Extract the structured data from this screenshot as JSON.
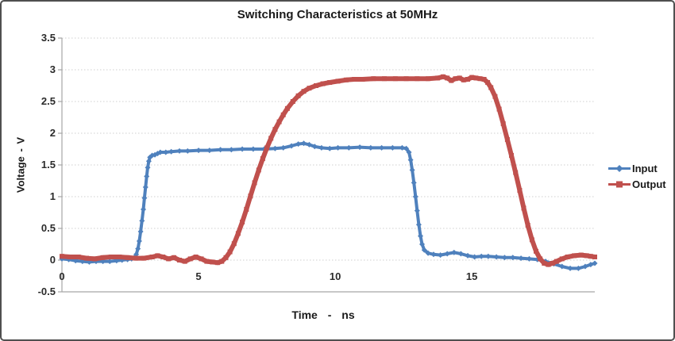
{
  "chart_data": {
    "type": "line",
    "title": "Switching Characteristics at 50MHz",
    "xlabel": "Time - ns",
    "ylabel": "Voltage - V",
    "xlim": [
      0,
      19.5
    ],
    "ylim": [
      -0.5,
      3.5
    ],
    "x_ticks": [
      0,
      5,
      10,
      15
    ],
    "y_ticks": [
      3.5,
      3,
      2.5,
      2,
      1.5,
      1,
      0.5,
      0,
      -0.5
    ],
    "grid": true,
    "grid_color": "#cfcfcf",
    "axis_color": "#a6a6a6",
    "legend_position": "right-outside",
    "series": [
      {
        "name": "Input",
        "color": "#4f81bd",
        "marker": "diamond",
        "line_width": 4,
        "points": [
          [
            0,
            0.02
          ],
          [
            0.25,
            0.01
          ],
          [
            0.5,
            -0.01
          ],
          [
            0.75,
            -0.02
          ],
          [
            1.0,
            -0.03
          ],
          [
            1.25,
            -0.02
          ],
          [
            1.5,
            -0.02
          ],
          [
            1.75,
            -0.02
          ],
          [
            2.0,
            -0.01
          ],
          [
            2.2,
            0
          ],
          [
            2.4,
            0.01
          ],
          [
            2.55,
            0.02
          ],
          [
            2.65,
            0.04
          ],
          [
            2.72,
            0.09
          ],
          [
            2.78,
            0.18
          ],
          [
            2.83,
            0.3
          ],
          [
            2.88,
            0.45
          ],
          [
            2.93,
            0.62
          ],
          [
            2.98,
            0.8
          ],
          [
            3.02,
            0.98
          ],
          [
            3.06,
            1.15
          ],
          [
            3.1,
            1.32
          ],
          [
            3.14,
            1.46
          ],
          [
            3.18,
            1.56
          ],
          [
            3.22,
            1.62
          ],
          [
            3.3,
            1.65
          ],
          [
            3.4,
            1.66
          ],
          [
            3.5,
            1.68
          ],
          [
            3.6,
            1.7
          ],
          [
            3.8,
            1.7
          ],
          [
            4.0,
            1.71
          ],
          [
            4.3,
            1.72
          ],
          [
            4.6,
            1.72
          ],
          [
            5.0,
            1.73
          ],
          [
            5.4,
            1.73
          ],
          [
            5.8,
            1.74
          ],
          [
            6.2,
            1.74
          ],
          [
            6.6,
            1.75
          ],
          [
            7.0,
            1.75
          ],
          [
            7.4,
            1.75
          ],
          [
            7.8,
            1.76
          ],
          [
            8.1,
            1.77
          ],
          [
            8.4,
            1.8
          ],
          [
            8.65,
            1.83
          ],
          [
            8.85,
            1.84
          ],
          [
            9.05,
            1.82
          ],
          [
            9.25,
            1.79
          ],
          [
            9.5,
            1.77
          ],
          [
            9.8,
            1.76
          ],
          [
            10.1,
            1.77
          ],
          [
            10.5,
            1.77
          ],
          [
            10.9,
            1.78
          ],
          [
            11.3,
            1.77
          ],
          [
            11.7,
            1.77
          ],
          [
            12.1,
            1.77
          ],
          [
            12.45,
            1.77
          ],
          [
            12.6,
            1.76
          ],
          [
            12.7,
            1.7
          ],
          [
            12.76,
            1.58
          ],
          [
            12.82,
            1.42
          ],
          [
            12.88,
            1.22
          ],
          [
            12.94,
            1.0
          ],
          [
            13.0,
            0.78
          ],
          [
            13.06,
            0.56
          ],
          [
            13.12,
            0.38
          ],
          [
            13.18,
            0.25
          ],
          [
            13.26,
            0.16
          ],
          [
            13.4,
            0.11
          ],
          [
            13.6,
            0.09
          ],
          [
            13.85,
            0.08
          ],
          [
            14.1,
            0.1
          ],
          [
            14.35,
            0.12
          ],
          [
            14.6,
            0.1
          ],
          [
            14.85,
            0.07
          ],
          [
            15.1,
            0.05
          ],
          [
            15.35,
            0.06
          ],
          [
            15.6,
            0.06
          ],
          [
            15.9,
            0.05
          ],
          [
            16.2,
            0.04
          ],
          [
            16.5,
            0.04
          ],
          [
            16.8,
            0.03
          ],
          [
            17.1,
            0.02
          ],
          [
            17.4,
            0.01
          ],
          [
            17.7,
            -0.02
          ],
          [
            18.0,
            -0.06
          ],
          [
            18.3,
            -0.1
          ],
          [
            18.6,
            -0.13
          ],
          [
            18.9,
            -0.13
          ],
          [
            19.15,
            -0.1
          ],
          [
            19.35,
            -0.07
          ],
          [
            19.5,
            -0.05
          ]
        ]
      },
      {
        "name": "Output",
        "color": "#c0504d",
        "marker": "square",
        "line_width": 6,
        "points": [
          [
            0,
            0.06
          ],
          [
            0.3,
            0.05
          ],
          [
            0.6,
            0.05
          ],
          [
            0.9,
            0.03
          ],
          [
            1.2,
            0.02
          ],
          [
            1.5,
            0.04
          ],
          [
            1.8,
            0.05
          ],
          [
            2.1,
            0.05
          ],
          [
            2.4,
            0.04
          ],
          [
            2.7,
            0.03
          ],
          [
            3.0,
            0.03
          ],
          [
            3.3,
            0.05
          ],
          [
            3.5,
            0.07
          ],
          [
            3.7,
            0.05
          ],
          [
            3.9,
            0.02
          ],
          [
            4.1,
            0.04
          ],
          [
            4.3,
            0.0
          ],
          [
            4.5,
            -0.02
          ],
          [
            4.7,
            0.02
          ],
          [
            4.9,
            0.05
          ],
          [
            5.1,
            0.02
          ],
          [
            5.3,
            -0.02
          ],
          [
            5.5,
            -0.03
          ],
          [
            5.7,
            -0.04
          ],
          [
            5.85,
            -0.02
          ],
          [
            6.0,
            0.04
          ],
          [
            6.15,
            0.13
          ],
          [
            6.3,
            0.26
          ],
          [
            6.45,
            0.42
          ],
          [
            6.6,
            0.6
          ],
          [
            6.75,
            0.8
          ],
          [
            6.9,
            1.01
          ],
          [
            7.05,
            1.22
          ],
          [
            7.2,
            1.42
          ],
          [
            7.35,
            1.6
          ],
          [
            7.5,
            1.77
          ],
          [
            7.65,
            1.92
          ],
          [
            7.8,
            2.06
          ],
          [
            7.95,
            2.18
          ],
          [
            8.1,
            2.29
          ],
          [
            8.25,
            2.39
          ],
          [
            8.45,
            2.5
          ],
          [
            8.65,
            2.59
          ],
          [
            8.85,
            2.66
          ],
          [
            9.05,
            2.71
          ],
          [
            9.3,
            2.75
          ],
          [
            9.55,
            2.78
          ],
          [
            9.8,
            2.8
          ],
          [
            10.1,
            2.82
          ],
          [
            10.4,
            2.84
          ],
          [
            10.7,
            2.85
          ],
          [
            11.0,
            2.85
          ],
          [
            11.4,
            2.86
          ],
          [
            11.8,
            2.86
          ],
          [
            12.2,
            2.86
          ],
          [
            12.6,
            2.86
          ],
          [
            13.0,
            2.86
          ],
          [
            13.4,
            2.86
          ],
          [
            13.75,
            2.87
          ],
          [
            13.95,
            2.89
          ],
          [
            14.1,
            2.87
          ],
          [
            14.25,
            2.83
          ],
          [
            14.4,
            2.86
          ],
          [
            14.55,
            2.87
          ],
          [
            14.7,
            2.84
          ],
          [
            14.85,
            2.85
          ],
          [
            15.0,
            2.88
          ],
          [
            15.15,
            2.87
          ],
          [
            15.3,
            2.86
          ],
          [
            15.45,
            2.85
          ],
          [
            15.58,
            2.8
          ],
          [
            15.7,
            2.72
          ],
          [
            15.85,
            2.58
          ],
          [
            16.0,
            2.38
          ],
          [
            16.15,
            2.15
          ],
          [
            16.3,
            1.9
          ],
          [
            16.45,
            1.65
          ],
          [
            16.6,
            1.38
          ],
          [
            16.75,
            1.1
          ],
          [
            16.9,
            0.82
          ],
          [
            17.05,
            0.55
          ],
          [
            17.2,
            0.32
          ],
          [
            17.35,
            0.14
          ],
          [
            17.5,
            0.02
          ],
          [
            17.65,
            -0.05
          ],
          [
            17.8,
            -0.07
          ],
          [
            17.95,
            -0.05
          ],
          [
            18.1,
            -0.02
          ],
          [
            18.3,
            0.02
          ],
          [
            18.5,
            0.05
          ],
          [
            18.75,
            0.07
          ],
          [
            19.0,
            0.08
          ],
          [
            19.2,
            0.07
          ],
          [
            19.35,
            0.06
          ],
          [
            19.5,
            0.05
          ]
        ]
      }
    ]
  }
}
